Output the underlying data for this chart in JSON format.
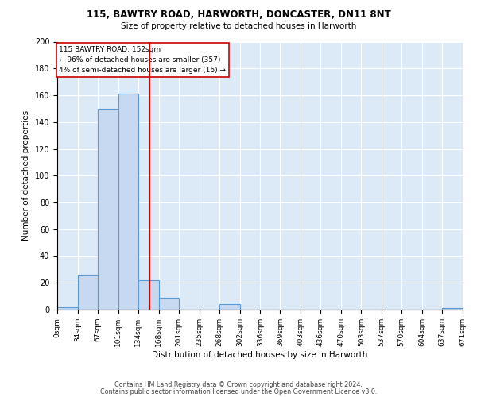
{
  "title1": "115, BAWTRY ROAD, HARWORTH, DONCASTER, DN11 8NT",
  "title2": "Size of property relative to detached houses in Harworth",
  "xlabel": "Distribution of detached houses by size in Harworth",
  "ylabel": "Number of detached properties",
  "bin_edges": [
    0,
    34,
    67,
    101,
    134,
    168,
    201,
    235,
    268,
    302,
    336,
    369,
    403,
    436,
    470,
    503,
    537,
    570,
    604,
    637,
    671
  ],
  "bin_labels": [
    "0sqm",
    "34sqm",
    "67sqm",
    "101sqm",
    "134sqm",
    "168sqm",
    "201sqm",
    "235sqm",
    "268sqm",
    "302sqm",
    "336sqm",
    "369sqm",
    "403sqm",
    "436sqm",
    "470sqm",
    "503sqm",
    "537sqm",
    "570sqm",
    "604sqm",
    "637sqm",
    "671sqm"
  ],
  "bar_heights": [
    2,
    26,
    150,
    161,
    22,
    9,
    0,
    0,
    4,
    0,
    0,
    0,
    0,
    0,
    0,
    0,
    0,
    0,
    0,
    1
  ],
  "bar_color": "#c6d9f0",
  "bar_edge_color": "#5b9bd5",
  "property_value": 152,
  "vline_color": "#cc0000",
  "annotation_text_line1": "115 BAWTRY ROAD: 152sqm",
  "annotation_text_line2": "← 96% of detached houses are smaller (357)",
  "annotation_text_line3": "4% of semi-detached houses are larger (16) →",
  "annotation_box_color": "#ffffff",
  "annotation_box_edge": "#cc0000",
  "ylim": [
    0,
    200
  ],
  "yticks": [
    0,
    20,
    40,
    60,
    80,
    100,
    120,
    140,
    160,
    180,
    200
  ],
  "background_color": "#dce9f7",
  "footer1": "Contains HM Land Registry data © Crown copyright and database right 2024.",
  "footer2": "Contains public sector information licensed under the Open Government Licence v3.0."
}
